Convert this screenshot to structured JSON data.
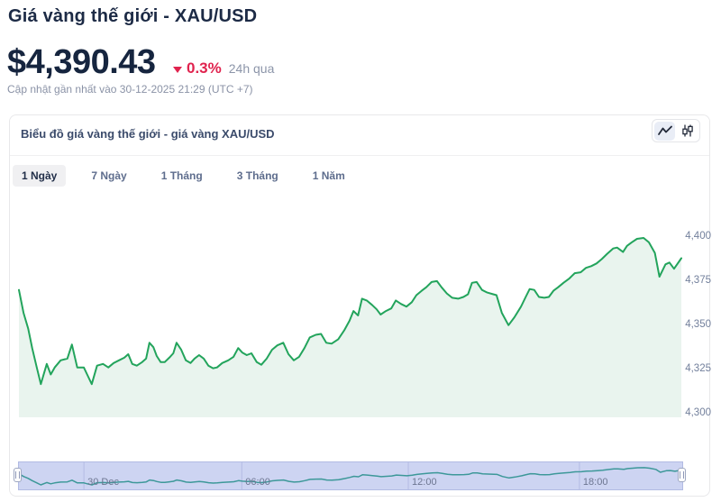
{
  "page": {
    "title": "Giá vàng thế giới - XAU/USD",
    "price": "$4,390.43",
    "change_percent": "0.3%",
    "change_direction": "down",
    "change_period": "24h qua",
    "last_updated": "Cập nhật gần nhất vào 30-12-2025 21:29 (UTC +7)"
  },
  "chart_card": {
    "title": "Biểu đồ giá vàng thế giới - giá vàng XAU/USD",
    "toolbar": {
      "line_chart_icon": "line-chart",
      "candlestick_icon": "candlestick-chart",
      "active": "line-chart"
    },
    "range_tabs": [
      {
        "label": "1 Ngày",
        "active": true
      },
      {
        "label": "7 Ngày",
        "active": false
      },
      {
        "label": "1 Tháng",
        "active": false
      },
      {
        "label": "3 Tháng",
        "active": false
      },
      {
        "label": "1 Năm",
        "active": false
      }
    ]
  },
  "chart_data": {
    "type": "area",
    "title": "XAU/USD spot gold price, 1-day window ending 30-12-2025 21:29 (UTC+7)",
    "x_unit": "fraction of 24h window",
    "grid": "off",
    "y_axis": {
      "side": "right",
      "min": 4300,
      "max": 4400,
      "ticks": [
        {
          "value": 4400,
          "label": "4,400"
        },
        {
          "value": 4375,
          "label": "4,375"
        },
        {
          "value": 4350,
          "label": "4,350"
        },
        {
          "value": 4325,
          "label": "4,325"
        },
        {
          "value": 4300,
          "label": "4,300"
        }
      ]
    },
    "navigator": {
      "background": "#cdd4f2",
      "line_color": "#3d9899",
      "ticks": [
        {
          "pos": 0.098,
          "label": "30 Dec"
        },
        {
          "pos": 0.336,
          "label": "06:00"
        },
        {
          "pos": 0.587,
          "label": "12:00"
        },
        {
          "pos": 0.845,
          "label": "18:00"
        }
      ]
    },
    "series": [
      {
        "name": "XAU/USD",
        "color": "#23a45c",
        "fill": "#e9f4ee",
        "points": [
          [
            0.0,
            4370
          ],
          [
            0.007,
            4357
          ],
          [
            0.014,
            4348
          ],
          [
            0.02,
            4337
          ],
          [
            0.027,
            4326
          ],
          [
            0.033,
            4316.5
          ],
          [
            0.042,
            4328
          ],
          [
            0.048,
            4322
          ],
          [
            0.054,
            4326
          ],
          [
            0.063,
            4330
          ],
          [
            0.073,
            4331
          ],
          [
            0.08,
            4339
          ],
          [
            0.088,
            4326
          ],
          [
            0.098,
            4326
          ],
          [
            0.103,
            4322
          ],
          [
            0.11,
            4316.5
          ],
          [
            0.118,
            4327
          ],
          [
            0.127,
            4328
          ],
          [
            0.135,
            4326
          ],
          [
            0.143,
            4328.5
          ],
          [
            0.151,
            4330
          ],
          [
            0.159,
            4331.5
          ],
          [
            0.165,
            4333.5
          ],
          [
            0.171,
            4328
          ],
          [
            0.178,
            4327
          ],
          [
            0.186,
            4329
          ],
          [
            0.192,
            4331
          ],
          [
            0.197,
            4340
          ],
          [
            0.203,
            4337.5
          ],
          [
            0.208,
            4332.5
          ],
          [
            0.214,
            4329
          ],
          [
            0.22,
            4329
          ],
          [
            0.227,
            4331.5
          ],
          [
            0.233,
            4334
          ],
          [
            0.238,
            4340
          ],
          [
            0.245,
            4336
          ],
          [
            0.252,
            4330
          ],
          [
            0.259,
            4328.5
          ],
          [
            0.265,
            4331
          ],
          [
            0.272,
            4333
          ],
          [
            0.279,
            4331
          ],
          [
            0.286,
            4327
          ],
          [
            0.293,
            4325.5
          ],
          [
            0.299,
            4326
          ],
          [
            0.307,
            4328.5
          ],
          [
            0.316,
            4330
          ],
          [
            0.324,
            4332
          ],
          [
            0.331,
            4337
          ],
          [
            0.337,
            4334.5
          ],
          [
            0.344,
            4333
          ],
          [
            0.351,
            4334
          ],
          [
            0.359,
            4329
          ],
          [
            0.366,
            4327.5
          ],
          [
            0.374,
            4331
          ],
          [
            0.382,
            4336
          ],
          [
            0.39,
            4338.5
          ],
          [
            0.399,
            4340
          ],
          [
            0.407,
            4333.5
          ],
          [
            0.415,
            4330
          ],
          [
            0.423,
            4332
          ],
          [
            0.431,
            4337
          ],
          [
            0.439,
            4343
          ],
          [
            0.448,
            4344.5
          ],
          [
            0.456,
            4345
          ],
          [
            0.464,
            4340
          ],
          [
            0.472,
            4339.5
          ],
          [
            0.482,
            4342
          ],
          [
            0.491,
            4347
          ],
          [
            0.499,
            4352.5
          ],
          [
            0.505,
            4358
          ],
          [
            0.512,
            4355.5
          ],
          [
            0.518,
            4365
          ],
          [
            0.525,
            4364
          ],
          [
            0.533,
            4361.5
          ],
          [
            0.54,
            4359
          ],
          [
            0.546,
            4356
          ],
          [
            0.554,
            4358
          ],
          [
            0.562,
            4359.5
          ],
          [
            0.569,
            4364
          ],
          [
            0.577,
            4362
          ],
          [
            0.585,
            4360.5
          ],
          [
            0.593,
            4363
          ],
          [
            0.6,
            4367
          ],
          [
            0.608,
            4369.5
          ],
          [
            0.615,
            4371.5
          ],
          [
            0.623,
            4374.5
          ],
          [
            0.631,
            4375
          ],
          [
            0.638,
            4371.5
          ],
          [
            0.646,
            4368
          ],
          [
            0.654,
            4365.5
          ],
          [
            0.663,
            4365
          ],
          [
            0.671,
            4366
          ],
          [
            0.678,
            4367.5
          ],
          [
            0.684,
            4374
          ],
          [
            0.691,
            4374.5
          ],
          [
            0.699,
            4370
          ],
          [
            0.707,
            4368.5
          ],
          [
            0.716,
            4367.5
          ],
          [
            0.721,
            4367
          ],
          [
            0.729,
            4357
          ],
          [
            0.739,
            4350
          ],
          [
            0.748,
            4354.5
          ],
          [
            0.758,
            4360.5
          ],
          [
            0.765,
            4366
          ],
          [
            0.771,
            4370.5
          ],
          [
            0.778,
            4370
          ],
          [
            0.785,
            4366
          ],
          [
            0.793,
            4365.5
          ],
          [
            0.8,
            4366
          ],
          [
            0.807,
            4369.5
          ],
          [
            0.814,
            4371.5
          ],
          [
            0.822,
            4374
          ],
          [
            0.831,
            4376.5
          ],
          [
            0.839,
            4379.5
          ],
          [
            0.848,
            4380
          ],
          [
            0.856,
            4382.5
          ],
          [
            0.864,
            4383.5
          ],
          [
            0.872,
            4385
          ],
          [
            0.88,
            4387.5
          ],
          [
            0.888,
            4390.5
          ],
          [
            0.897,
            4393.5
          ],
          [
            0.903,
            4394
          ],
          [
            0.912,
            4391.5
          ],
          [
            0.918,
            4395
          ],
          [
            0.925,
            4397
          ],
          [
            0.933,
            4399
          ],
          [
            0.943,
            4399.5
          ],
          [
            0.951,
            4397
          ],
          [
            0.96,
            4391
          ],
          [
            0.967,
            4377.5
          ],
          [
            0.976,
            4384.5
          ],
          [
            0.982,
            4385.5
          ],
          [
            0.989,
            4382
          ],
          [
            1.0,
            4388
          ]
        ]
      }
    ]
  },
  "colors": {
    "navy": "#1c2a45",
    "red": "#e0234e",
    "green": "#23a45c",
    "green_fill": "#e9f4ee",
    "nav_bg": "#cdd4f2",
    "nav_line": "#3d9899"
  }
}
